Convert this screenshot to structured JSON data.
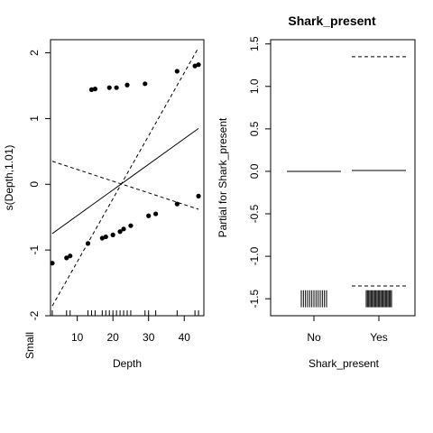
{
  "chart_data": [
    {
      "type": "scatter",
      "title": "",
      "xlabel": "Depth",
      "ylabel": "s(Depth,1.01)",
      "extra_label": "Small",
      "xlim": [
        2.5,
        45.5
      ],
      "ylim": [
        -2,
        2.2
      ],
      "xticks": [
        10,
        20,
        30,
        40
      ],
      "yticks": [
        -2,
        -1,
        0,
        1,
        2
      ],
      "series": [
        {
          "role": "smooth",
          "x": [
            3,
            44
          ],
          "y": [
            -0.75,
            0.85
          ]
        },
        {
          "role": "upper-band",
          "x": [
            3,
            44
          ],
          "y": [
            0.35,
            -0.38
          ]
        },
        {
          "role": "lower-band",
          "x": [
            3,
            44
          ],
          "y": [
            -1.85,
            2.08
          ]
        },
        {
          "role": "residuals",
          "x": [
            3,
            7,
            8,
            13,
            14,
            15,
            17,
            18,
            19,
            20,
            21,
            22,
            23,
            24,
            25,
            29,
            30,
            32,
            38,
            38,
            43,
            44,
            44
          ],
          "y": [
            -1.2,
            -1.12,
            -1.09,
            -0.9,
            1.44,
            1.45,
            -0.82,
            -0.8,
            1.47,
            -0.77,
            1.47,
            -0.72,
            -0.68,
            1.51,
            -0.63,
            1.53,
            -0.48,
            -0.45,
            -0.3,
            1.72,
            1.8,
            1.82,
            -0.18
          ]
        }
      ],
      "rug": [
        3,
        7,
        8,
        13,
        14,
        15,
        17,
        18,
        19,
        20,
        21,
        22,
        23,
        24,
        25,
        29,
        30,
        32,
        38,
        43,
        44
      ]
    },
    {
      "type": "line",
      "title": "Shark_present",
      "xlabel": "Shark_present",
      "ylabel": "Partial for Shark_present",
      "categories": [
        "No",
        "Yes"
      ],
      "ylim": [
        -1.7,
        1.55
      ],
      "yticks": [
        -1.5,
        -1.0,
        -0.5,
        0.0,
        0.5,
        1.0,
        1.5
      ],
      "ytick_labels": [
        "-1.5",
        "-1.0",
        "-0.5",
        "0.0",
        "0.5",
        "1.0",
        "1.5"
      ],
      "effects": [
        {
          "category": "No",
          "value": 0.0
        },
        {
          "category": "Yes",
          "value": 0.01,
          "upper": 1.35,
          "lower": -1.35
        }
      ]
    }
  ]
}
